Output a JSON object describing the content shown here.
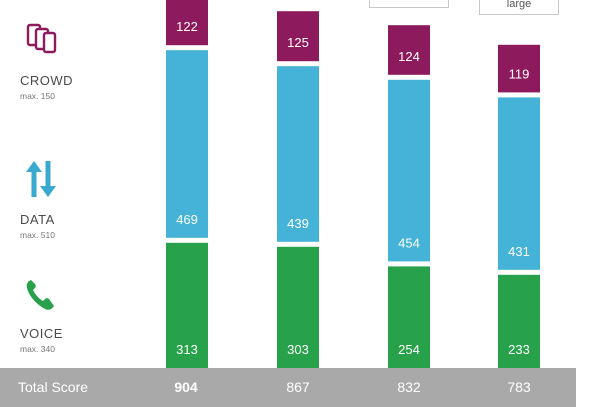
{
  "categories_panel": [
    {
      "name": "CROWD",
      "max": "max. 150",
      "icon": "phones-icon",
      "color": "#8c1a5c"
    },
    {
      "name": "DATA",
      "max": "max. 510",
      "icon": "up-down-arrows-icon",
      "color": "#3aa9cf"
    },
    {
      "name": "VOICE",
      "max": "max. 340",
      "icon": "phone-handset-icon",
      "color": "#27a24a"
    }
  ],
  "callouts": {
    "right": "large"
  },
  "chart_data": {
    "type": "bar",
    "stacked": true,
    "categories": [
      "",
      "",
      "",
      ""
    ],
    "series": [
      {
        "name": "VOICE",
        "values": [
          313,
          303,
          254,
          233
        ],
        "color": "#27a24a"
      },
      {
        "name": "DATA",
        "values": [
          469,
          439,
          454,
          431
        ],
        "color": "#45b3d8"
      },
      {
        "name": "CROWD",
        "values": [
          122,
          125,
          124,
          119
        ],
        "color": "#8c1a5c"
      }
    ],
    "totals": [
      904,
      867,
      832,
      783
    ],
    "total_label": "Total Score"
  }
}
